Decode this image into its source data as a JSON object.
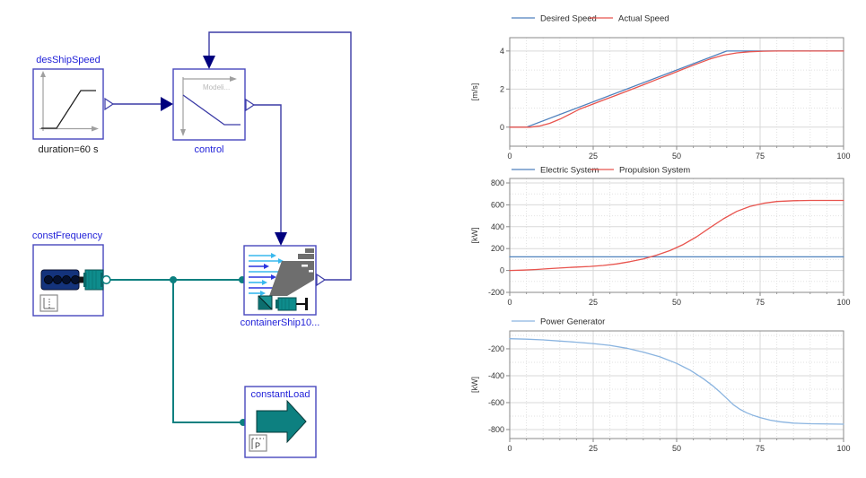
{
  "diagram": {
    "blocks": {
      "des_ship_speed": {
        "label": "desShipSpeed",
        "param": "duration=60 s"
      },
      "control": {
        "label": "control",
        "watermark": "Modeli..."
      },
      "const_frequency": {
        "label": "constFrequency"
      },
      "container_ship": {
        "label": "containerShip10..."
      },
      "constant_load": {
        "label": "constantLoad",
        "p_icon": "P"
      }
    },
    "colors": {
      "signal_line": "#3b3ba6",
      "signal_arrow": "#00007e",
      "block_border": "#4747bd",
      "block_label": "#1f1fd8",
      "power_line": "#0d8080",
      "ship_gray": "#6e6e6e"
    }
  },
  "chart_data": [
    {
      "type": "line",
      "title": "",
      "xlabel": "",
      "ylabel": "[m/s]",
      "xlim": [
        0,
        100
      ],
      "ylim": [
        -1,
        4.7
      ],
      "xticks": [
        0,
        25,
        50,
        75,
        100
      ],
      "yticks": [
        0,
        2,
        4
      ],
      "x_minor_step": 5,
      "y_minor_step": 1,
      "grid": true,
      "legend_position": "top",
      "series": [
        {
          "name": "Desired Speed",
          "color": "#4f81bd",
          "points": [
            [
              0,
              0
            ],
            [
              5,
              0
            ],
            [
              65,
              4
            ],
            [
              100,
              4
            ]
          ]
        },
        {
          "name": "Actual Speed",
          "color": "#e8544e",
          "points": [
            [
              0,
              0
            ],
            [
              6,
              0
            ],
            [
              9,
              0.06
            ],
            [
              12,
              0.2
            ],
            [
              15,
              0.42
            ],
            [
              18,
              0.68
            ],
            [
              21,
              0.95
            ],
            [
              24,
              1.15
            ],
            [
              28,
              1.42
            ],
            [
              32,
              1.68
            ],
            [
              36,
              1.95
            ],
            [
              40,
              2.22
            ],
            [
              44,
              2.5
            ],
            [
              48,
              2.77
            ],
            [
              52,
              3.05
            ],
            [
              56,
              3.32
            ],
            [
              60,
              3.58
            ],
            [
              64,
              3.78
            ],
            [
              68,
              3.9
            ],
            [
              72,
              3.96
            ],
            [
              76,
              3.99
            ],
            [
              80,
              4
            ],
            [
              100,
              4
            ]
          ]
        }
      ]
    },
    {
      "type": "line",
      "title": "",
      "xlabel": "",
      "ylabel": "[kW]",
      "xlim": [
        0,
        100
      ],
      "ylim": [
        -200,
        841
      ],
      "xticks": [
        0,
        25,
        50,
        75,
        100
      ],
      "yticks": [
        -200,
        0,
        200,
        400,
        600,
        800
      ],
      "x_minor_step": 5,
      "y_minor_step": 100,
      "grid": true,
      "legend_position": "top",
      "series": [
        {
          "name": "Electric System",
          "color": "#4f81bd",
          "points": [
            [
              0,
              125
            ],
            [
              100,
              125
            ]
          ]
        },
        {
          "name": "Propulsion System",
          "color": "#e8544e",
          "points": [
            [
              0,
              0
            ],
            [
              4,
              3
            ],
            [
              8,
              9
            ],
            [
              12,
              17
            ],
            [
              16,
              25
            ],
            [
              20,
              31
            ],
            [
              24,
              37
            ],
            [
              28,
              46
            ],
            [
              32,
              60
            ],
            [
              36,
              80
            ],
            [
              40,
              105
            ],
            [
              44,
              140
            ],
            [
              48,
              182
            ],
            [
              52,
              238
            ],
            [
              56,
              308
            ],
            [
              60,
              392
            ],
            [
              64,
              472
            ],
            [
              68,
              540
            ],
            [
              72,
              586
            ],
            [
              76,
              614
            ],
            [
              80,
              630
            ],
            [
              85,
              638
            ],
            [
              90,
              640
            ],
            [
              100,
              640
            ]
          ]
        }
      ]
    },
    {
      "type": "line",
      "title": "",
      "xlabel": "",
      "ylabel": "[kW]",
      "xlim": [
        0,
        100
      ],
      "ylim": [
        -867,
        -67
      ],
      "xticks": [
        0,
        25,
        50,
        75,
        100
      ],
      "yticks": [
        -800,
        -600,
        -400,
        -200
      ],
      "x_minor_step": 5,
      "y_minor_step": 100,
      "grid": true,
      "legend_position": "top",
      "series": [
        {
          "name": "Power Generator",
          "color": "#8ab4e0",
          "points": [
            [
              0,
              -125
            ],
            [
              5,
              -128
            ],
            [
              10,
              -134
            ],
            [
              15,
              -142
            ],
            [
              20,
              -151
            ],
            [
              25,
              -161
            ],
            [
              30,
              -174
            ],
            [
              35,
              -196
            ],
            [
              40,
              -224
            ],
            [
              45,
              -260
            ],
            [
              50,
              -308
            ],
            [
              54,
              -358
            ],
            [
              58,
              -422
            ],
            [
              61,
              -478
            ],
            [
              63,
              -522
            ],
            [
              65,
              -568
            ],
            [
              67,
              -616
            ],
            [
              69,
              -650
            ],
            [
              71,
              -676
            ],
            [
              73,
              -696
            ],
            [
              75,
              -711
            ],
            [
              78,
              -730
            ],
            [
              81,
              -742
            ],
            [
              85,
              -752
            ],
            [
              90,
              -757
            ],
            [
              100,
              -760
            ]
          ]
        }
      ]
    }
  ]
}
